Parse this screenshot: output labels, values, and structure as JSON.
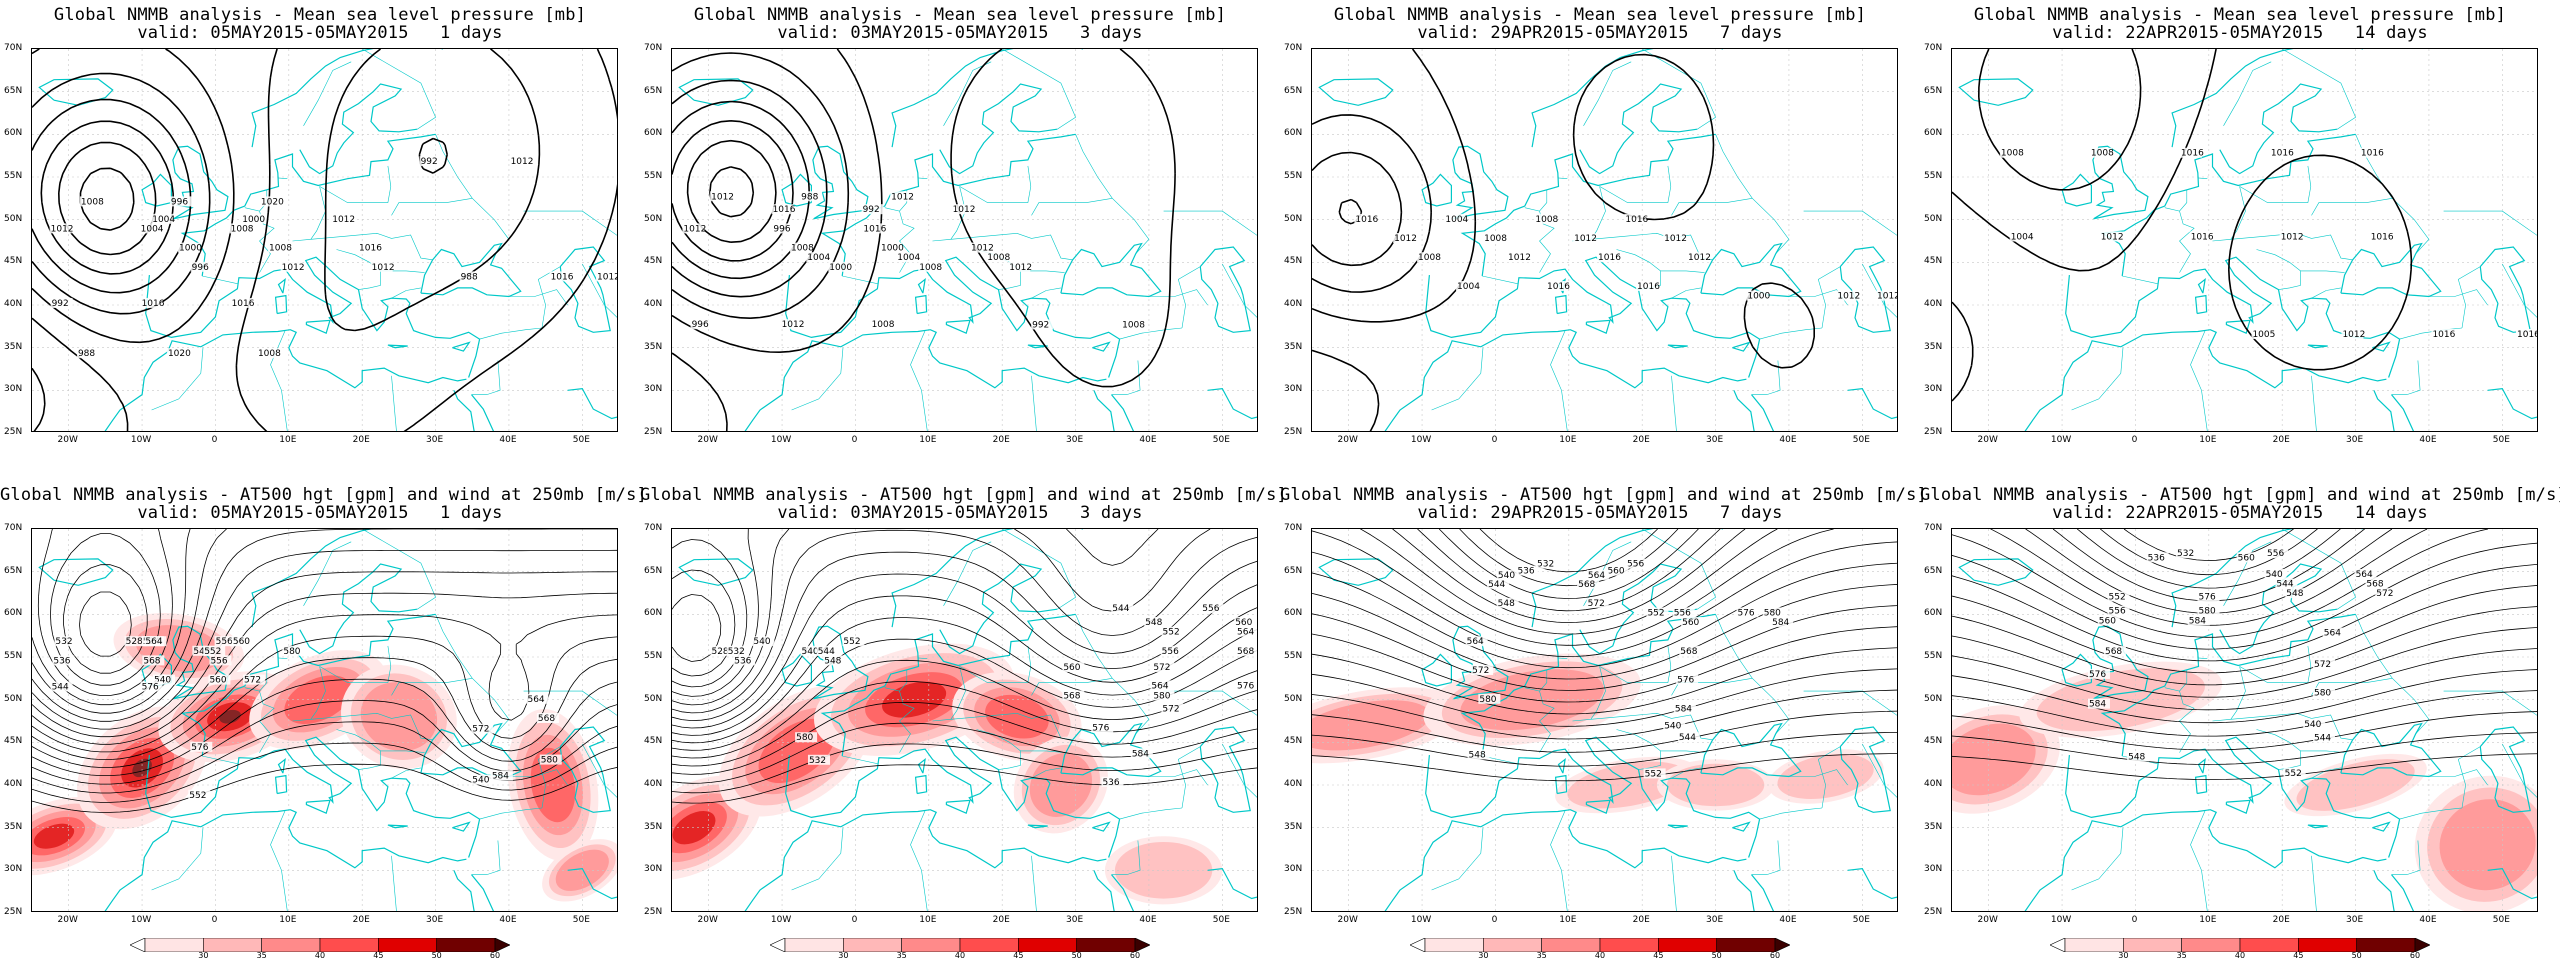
{
  "layout": {
    "columns": 4,
    "rows": 2
  },
  "colors": {
    "coastline": "#00c8c8",
    "contour": "#000000",
    "wind_scale": [
      "#ffe4e4",
      "#ffb8b8",
      "#ff8a8a",
      "#ff4d4d",
      "#e00000",
      "#700000"
    ]
  },
  "map": {
    "lat_labels": [
      "70N",
      "65N",
      "60N",
      "55N",
      "50N",
      "45N",
      "40N",
      "35N",
      "30N",
      "25N"
    ],
    "lon_labels": [
      "20W",
      "10W",
      "0",
      "10E",
      "20E",
      "30E",
      "40E",
      "50E"
    ],
    "lon_range": [
      -25,
      55
    ],
    "lat_range": [
      25,
      70
    ]
  },
  "colorbar": {
    "labels": [
      "30",
      "35",
      "40",
      "45",
      "50",
      "60"
    ],
    "unit": "m/s"
  },
  "panels": [
    {
      "title": "Global NMMB analysis - Mean sea level pressure [mb]",
      "valid": "valid: 05MAY2015-05MAY2015   1 days",
      "field": "mslp",
      "contour_labels": [
        "1008",
        "1004",
        "1012",
        "1000",
        "996",
        "992",
        "988",
        "988",
        "992",
        "996",
        "1000",
        "1004",
        "1008",
        "1012",
        "1016",
        "1020",
        "1016",
        "1012",
        "1020",
        "1012",
        "1008",
        "1016",
        "1012",
        "1016",
        "1008",
        "1012"
      ]
    },
    {
      "title": "Global NMMB analysis - Mean sea level pressure [mb]",
      "valid": "valid: 03MAY2015-05MAY2015   3 days",
      "field": "mslp",
      "contour_labels": [
        "1012",
        "1016",
        "1012",
        "1008",
        "1004",
        "1000",
        "996",
        "992",
        "988",
        "992",
        "996",
        "1000",
        "1004",
        "1008",
        "1012",
        "1008",
        "1012",
        "1012",
        "1016",
        "1012",
        "1008",
        "1012",
        "1008"
      ]
    },
    {
      "title": "Global NMMB analysis - Mean sea level pressure [mb]",
      "valid": "valid: 29APR2015-05MAY2015   7 days",
      "field": "mslp",
      "contour_labels": [
        "1016",
        "1012",
        "1008",
        "1004",
        "1000",
        "1004",
        "1008",
        "1012",
        "1016",
        "1012",
        "1008",
        "1012",
        "1016",
        "1016",
        "1012",
        "1016",
        "1012",
        "1012"
      ]
    },
    {
      "title": "Global NMMB analysis - Mean sea level pressure [mb]",
      "valid": "valid: 22APR2015-05MAY2015   14 days",
      "field": "mslp",
      "contour_labels": [
        "1008",
        "1004",
        "1005",
        "1008",
        "1012",
        "1012",
        "1016",
        "1016",
        "1016",
        "1016",
        "1012",
        "1012",
        "1016",
        "1016",
        "1016"
      ]
    },
    {
      "title": "Global NMMB analysis - AT500 hgt [gpm] and wind at 250mb [m/s]",
      "valid": "valid: 05MAY2015-05MAY2015   1 days",
      "field": "z500",
      "contour_labels": [
        "528",
        "524",
        "532",
        "536",
        "540",
        "544",
        "548",
        "552",
        "556",
        "560",
        "564",
        "568",
        "572",
        "576",
        "580",
        "584",
        "540",
        "552",
        "556",
        "560",
        "564",
        "568",
        "572",
        "576",
        "580"
      ]
    },
    {
      "title": "Global NMMB analysis - AT500 hgt [gpm] and wind at 250mb [m/s]",
      "valid": "valid: 03MAY2015-05MAY2015   3 days",
      "field": "z500",
      "contour_labels": [
        "528",
        "532",
        "536",
        "540",
        "544",
        "548",
        "552",
        "556",
        "560",
        "564",
        "568",
        "572",
        "576",
        "580",
        "584",
        "532",
        "536",
        "540",
        "544",
        "548",
        "552",
        "556",
        "560",
        "564",
        "568",
        "572",
        "576",
        "580"
      ]
    },
    {
      "title": "Global NMMB analysis - AT500 hgt [gpm] and wind at 250mb [m/s]",
      "valid": "valid: 29APR2015-05MAY2015   7 days",
      "field": "z500",
      "contour_labels": [
        "532",
        "536",
        "540",
        "544",
        "548",
        "552",
        "556",
        "560",
        "564",
        "568",
        "572",
        "576",
        "580",
        "584",
        "540",
        "544",
        "548",
        "552",
        "556",
        "560",
        "564",
        "568",
        "572",
        "576",
        "580",
        "584"
      ]
    },
    {
      "title": "Global NMMB analysis - AT500 hgt [gpm] and wind at 250mb [m/s]",
      "valid": "valid: 22APR2015-05MAY2015   14 days",
      "field": "z500",
      "contour_labels": [
        "532",
        "536",
        "540",
        "544",
        "548",
        "552",
        "556",
        "560",
        "564",
        "568",
        "572",
        "576",
        "580",
        "584",
        "540",
        "544",
        "548",
        "552",
        "556",
        "560",
        "564",
        "568",
        "572",
        "576",
        "580",
        "584"
      ]
    }
  ]
}
